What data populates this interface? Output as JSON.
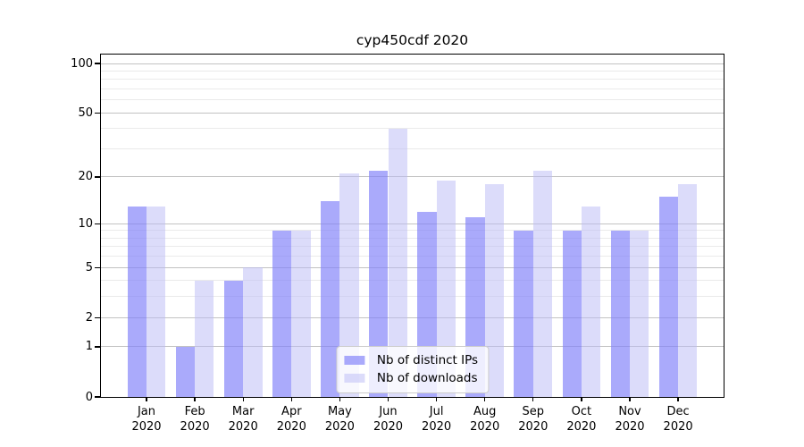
{
  "title": "cyp450cdf 2020",
  "chart_data": {
    "type": "bar",
    "title": "cyp450cdf 2020",
    "categories": [
      {
        "month": "Jan",
        "year": "2020"
      },
      {
        "month": "Feb",
        "year": "2020"
      },
      {
        "month": "Mar",
        "year": "2020"
      },
      {
        "month": "Apr",
        "year": "2020"
      },
      {
        "month": "May",
        "year": "2020"
      },
      {
        "month": "Jun",
        "year": "2020"
      },
      {
        "month": "Jul",
        "year": "2020"
      },
      {
        "month": "Aug",
        "year": "2020"
      },
      {
        "month": "Sep",
        "year": "2020"
      },
      {
        "month": "Oct",
        "year": "2020"
      },
      {
        "month": "Nov",
        "year": "2020"
      },
      {
        "month": "Dec",
        "year": "2020"
      }
    ],
    "series": [
      {
        "name": "Nb of distinct IPs",
        "color": "rgba(129,129,249,0.68)",
        "values": [
          13,
          1,
          4,
          9,
          14,
          22,
          12,
          11,
          9,
          9,
          9,
          15
        ]
      },
      {
        "name": "Nb of downloads",
        "color": "rgba(185,185,245,0.5)",
        "values": [
          13,
          4,
          5,
          9,
          21,
          40,
          19,
          18,
          22,
          13,
          9,
          18
        ]
      }
    ],
    "yscale": "log1p",
    "ylim": [
      0,
      113.4
    ],
    "y_ticks_major": [
      0,
      1,
      2,
      5,
      10,
      20,
      50,
      100
    ],
    "y_ticks_minor": [
      3,
      4,
      6,
      7,
      8,
      9,
      30,
      40,
      60,
      70,
      80,
      90
    ],
    "grid": true,
    "legend_position": "lower center",
    "colors": {
      "axis": "#000000",
      "grid_major": "#c2c2c2",
      "grid_minor": "#eaeaea",
      "legend_border": "#cccccc",
      "legend_background": "rgba(255,255,255,0.8)"
    }
  }
}
